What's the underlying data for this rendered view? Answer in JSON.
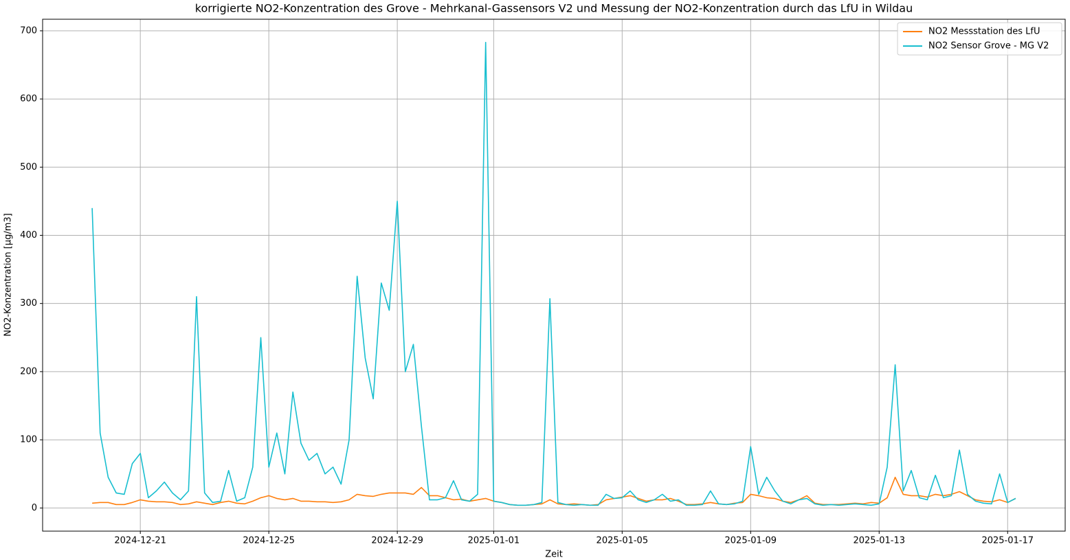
{
  "chart_data": {
    "type": "line",
    "title": "korrigierte NO2-Konzentration des Grove - Mehrkanal-Gassensors V2 und Messung der NO2-Konzentration durch das LfU in Wildau",
    "x_label": "Zeit",
    "y_label": "NO2-Konzentration [µg/m3]",
    "x": [
      "2024-12-19T12:00",
      "2024-12-19T18:00",
      "2024-12-20T00:00",
      "2024-12-20T06:00",
      "2024-12-20T12:00",
      "2024-12-20T18:00",
      "2024-12-21T00:00",
      "2024-12-21T06:00",
      "2024-12-21T12:00",
      "2024-12-21T18:00",
      "2024-12-22T00:00",
      "2024-12-22T06:00",
      "2024-12-22T12:00",
      "2024-12-22T18:00",
      "2024-12-23T00:00",
      "2024-12-23T06:00",
      "2024-12-23T12:00",
      "2024-12-23T18:00",
      "2024-12-24T00:00",
      "2024-12-24T06:00",
      "2024-12-24T12:00",
      "2024-12-24T18:00",
      "2024-12-25T00:00",
      "2024-12-25T06:00",
      "2024-12-25T12:00",
      "2024-12-25T18:00",
      "2024-12-26T00:00",
      "2024-12-26T06:00",
      "2024-12-26T12:00",
      "2024-12-26T18:00",
      "2024-12-27T00:00",
      "2024-12-27T06:00",
      "2024-12-27T12:00",
      "2024-12-27T18:00",
      "2024-12-28T00:00",
      "2024-12-28T06:00",
      "2024-12-28T12:00",
      "2024-12-28T18:00",
      "2024-12-29T00:00",
      "2024-12-29T06:00",
      "2024-12-29T12:00",
      "2024-12-29T18:00",
      "2024-12-30T00:00",
      "2024-12-30T06:00",
      "2024-12-30T12:00",
      "2024-12-30T18:00",
      "2024-12-31T00:00",
      "2024-12-31T06:00",
      "2024-12-31T12:00",
      "2024-12-31T18:00",
      "2025-01-01T00:00",
      "2025-01-01T06:00",
      "2025-01-01T12:00",
      "2025-01-01T18:00",
      "2025-01-02T00:00",
      "2025-01-02T06:00",
      "2025-01-02T12:00",
      "2025-01-02T18:00",
      "2025-01-03T00:00",
      "2025-01-03T06:00",
      "2025-01-03T12:00",
      "2025-01-03T18:00",
      "2025-01-04T00:00",
      "2025-01-04T06:00",
      "2025-01-04T12:00",
      "2025-01-04T18:00",
      "2025-01-05T00:00",
      "2025-01-05T06:00",
      "2025-01-05T12:00",
      "2025-01-05T18:00",
      "2025-01-06T00:00",
      "2025-01-06T06:00",
      "2025-01-06T12:00",
      "2025-01-06T18:00",
      "2025-01-07T00:00",
      "2025-01-07T06:00",
      "2025-01-07T12:00",
      "2025-01-07T18:00",
      "2025-01-08T00:00",
      "2025-01-08T06:00",
      "2025-01-08T12:00",
      "2025-01-08T18:00",
      "2025-01-09T00:00",
      "2025-01-09T06:00",
      "2025-01-09T12:00",
      "2025-01-09T18:00",
      "2025-01-10T00:00",
      "2025-01-10T06:00",
      "2025-01-10T12:00",
      "2025-01-10T18:00",
      "2025-01-11T00:00",
      "2025-01-11T06:00",
      "2025-01-11T12:00",
      "2025-01-11T18:00",
      "2025-01-12T00:00",
      "2025-01-12T06:00",
      "2025-01-12T12:00",
      "2025-01-12T18:00",
      "2025-01-13T00:00",
      "2025-01-13T06:00",
      "2025-01-13T12:00",
      "2025-01-13T18:00",
      "2025-01-14T00:00",
      "2025-01-14T06:00",
      "2025-01-14T12:00",
      "2025-01-14T18:00",
      "2025-01-15T00:00",
      "2025-01-15T06:00",
      "2025-01-15T12:00",
      "2025-01-15T18:00",
      "2025-01-16T00:00",
      "2025-01-16T06:00",
      "2025-01-16T12:00",
      "2025-01-16T18:00",
      "2025-01-17T00:00",
      "2025-01-17T06:00"
    ],
    "series": [
      {
        "name": "NO2 Messstation des LfU",
        "color": "#ff7f0e",
        "values": [
          7,
          8,
          8,
          5,
          5,
          8,
          12,
          10,
          9,
          9,
          8,
          5,
          6,
          9,
          7,
          5,
          8,
          10,
          7,
          6,
          10,
          15,
          18,
          14,
          12,
          14,
          10,
          10,
          9,
          9,
          8,
          9,
          12,
          20,
          18,
          17,
          20,
          22,
          22,
          22,
          20,
          30,
          18,
          18,
          15,
          12,
          13,
          10,
          12,
          14,
          10,
          8,
          5,
          4,
          4,
          5,
          6,
          12,
          6,
          5,
          6,
          5,
          4,
          5,
          12,
          14,
          16,
          18,
          14,
          10,
          12,
          12,
          14,
          10,
          5,
          5,
          6,
          8,
          6,
          5,
          7,
          8,
          20,
          18,
          15,
          14,
          10,
          8,
          12,
          18,
          7,
          5,
          5,
          5,
          6,
          7,
          6,
          8,
          7,
          15,
          45,
          20,
          18,
          18,
          16,
          20,
          18,
          20,
          24,
          18,
          12,
          10,
          9,
          12,
          8,
          14
        ]
      },
      {
        "name": "NO2 Sensor Grove - MG V2",
        "color": "#17becf",
        "values": [
          440,
          110,
          45,
          22,
          20,
          65,
          80,
          15,
          25,
          38,
          22,
          12,
          25,
          310,
          22,
          8,
          10,
          55,
          10,
          15,
          60,
          250,
          60,
          110,
          50,
          170,
          95,
          70,
          80,
          50,
          60,
          35,
          100,
          340,
          220,
          160,
          330,
          290,
          450,
          200,
          240,
          120,
          12,
          12,
          15,
          40,
          12,
          10,
          20,
          683,
          10,
          8,
          5,
          4,
          4,
          5,
          8,
          307,
          8,
          5,
          4,
          5,
          4,
          4,
          20,
          14,
          15,
          25,
          12,
          8,
          12,
          20,
          10,
          12,
          4,
          4,
          5,
          25,
          6,
          5,
          6,
          10,
          90,
          20,
          45,
          25,
          10,
          6,
          12,
          14,
          6,
          4,
          5,
          4,
          5,
          6,
          5,
          4,
          6,
          60,
          210,
          25,
          55,
          15,
          12,
          48,
          15,
          18,
          85,
          20,
          10,
          7,
          6,
          50,
          8,
          14
        ]
      }
    ],
    "xlim": [
      "2024-12-17T23:00",
      "2025-01-18T19:00"
    ],
    "xticks": [
      "2024-12-21",
      "2024-12-25",
      "2024-12-29",
      "2025-01-01",
      "2025-01-05",
      "2025-01-09",
      "2025-01-13",
      "2025-01-17"
    ],
    "ylim": [
      -34,
      717
    ],
    "yticks": [
      0,
      100,
      200,
      300,
      400,
      500,
      600,
      700
    ],
    "grid": true,
    "legend": "upper right"
  }
}
